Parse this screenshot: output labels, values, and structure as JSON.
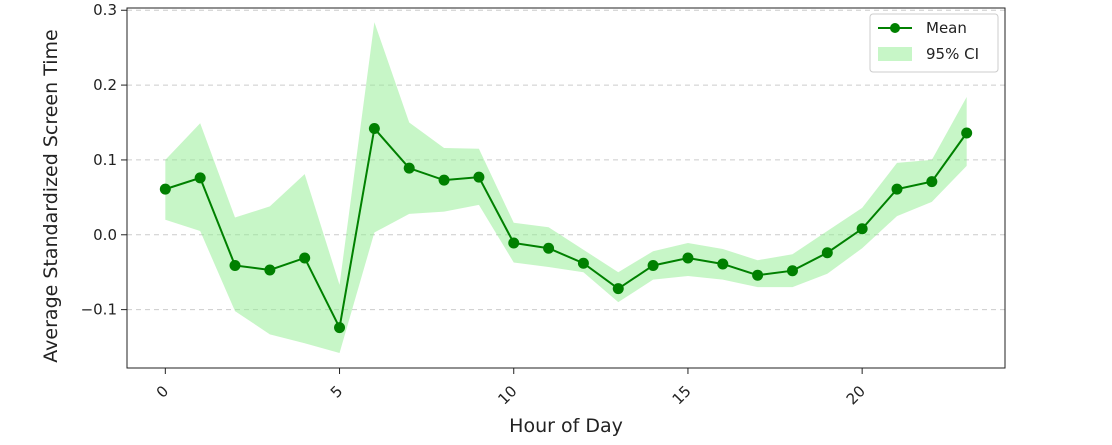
{
  "chart_data": {
    "type": "line",
    "title": "",
    "xlabel": "Hour of Day",
    "ylabel": "Average Standardized Screen Time",
    "xlim": [
      -1.1,
      24.1
    ],
    "ylim": [
      -0.178,
      0.303
    ],
    "xticks": [
      0,
      5,
      10,
      15,
      20
    ],
    "xtick_labels": [
      "0",
      "5",
      "10",
      "15",
      "20"
    ],
    "yticks": [
      -0.1,
      0.0,
      0.1,
      0.2,
      0.3
    ],
    "ytick_labels": [
      "−0.1",
      "0.0",
      "0.1",
      "0.2",
      "0.3"
    ],
    "grid": "y-dashed",
    "legend_position": "top-right",
    "legend": {
      "mean_label": "Mean",
      "ci_label": "95% CI"
    },
    "colors": {
      "mean": "#008000",
      "ci": "#90ee90"
    },
    "x": [
      0,
      1,
      2,
      3,
      4,
      5,
      6,
      7,
      8,
      9,
      10,
      11,
      12,
      13,
      14,
      15,
      16,
      17,
      18,
      19,
      20,
      21,
      22,
      23
    ],
    "series": [
      {
        "name": "Mean",
        "values": [
          0.061,
          0.076,
          -0.041,
          -0.047,
          -0.031,
          -0.124,
          0.142,
          0.089,
          0.073,
          0.077,
          -0.011,
          -0.018,
          -0.038,
          -0.072,
          -0.041,
          -0.031,
          -0.039,
          -0.054,
          -0.048,
          -0.024,
          0.008,
          0.061,
          0.071,
          0.136
        ]
      }
    ],
    "ci": {
      "name": "95% CI",
      "lower": [
        0.02,
        0.005,
        -0.102,
        -0.133,
        -0.145,
        -0.158,
        0.003,
        0.028,
        0.031,
        0.04,
        -0.037,
        -0.043,
        -0.05,
        -0.09,
        -0.06,
        -0.055,
        -0.06,
        -0.07,
        -0.07,
        -0.052,
        -0.018,
        0.025,
        0.044,
        0.092
      ],
      "upper": [
        0.1,
        0.149,
        0.023,
        0.038,
        0.081,
        -0.067,
        0.284,
        0.15,
        0.116,
        0.115,
        0.016,
        0.01,
        -0.02,
        -0.05,
        -0.022,
        -0.011,
        -0.019,
        -0.034,
        -0.026,
        0.005,
        0.036,
        0.096,
        0.1,
        0.184
      ]
    }
  }
}
